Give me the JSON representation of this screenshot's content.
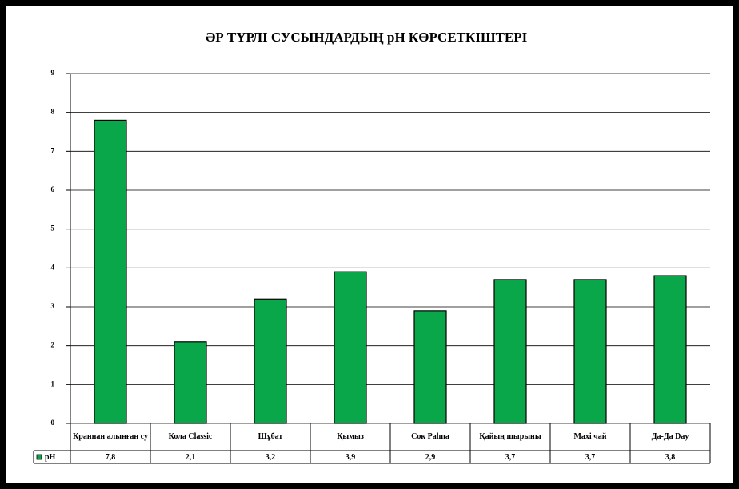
{
  "chart_data": {
    "type": "bar",
    "title": "ӘР ТҮРЛІ СУСЫНДАРДЫҢ pH КӨРСЕТКІШТЕРІ",
    "categories": [
      "Краннан алынған су",
      "Кола Classic",
      "Шұбат",
      "Қымыз",
      "Сок Palma",
      "Қайың шырыны",
      "Maxi чай",
      "Да-Да Day"
    ],
    "series": [
      {
        "name": "pH",
        "color": "#0aa64a",
        "values": [
          7.8,
          2.1,
          3.2,
          3.9,
          2.9,
          3.7,
          3.7,
          3.8
        ],
        "value_labels": [
          "7,8",
          "2,1",
          "3,2",
          "3,9",
          "2,9",
          "3,7",
          "3,7",
          "3,8"
        ]
      }
    ],
    "ylim": [
      0,
      9
    ],
    "yticks": [
      0,
      1,
      2,
      3,
      4,
      5,
      6,
      7,
      8,
      9
    ],
    "grid": true
  }
}
